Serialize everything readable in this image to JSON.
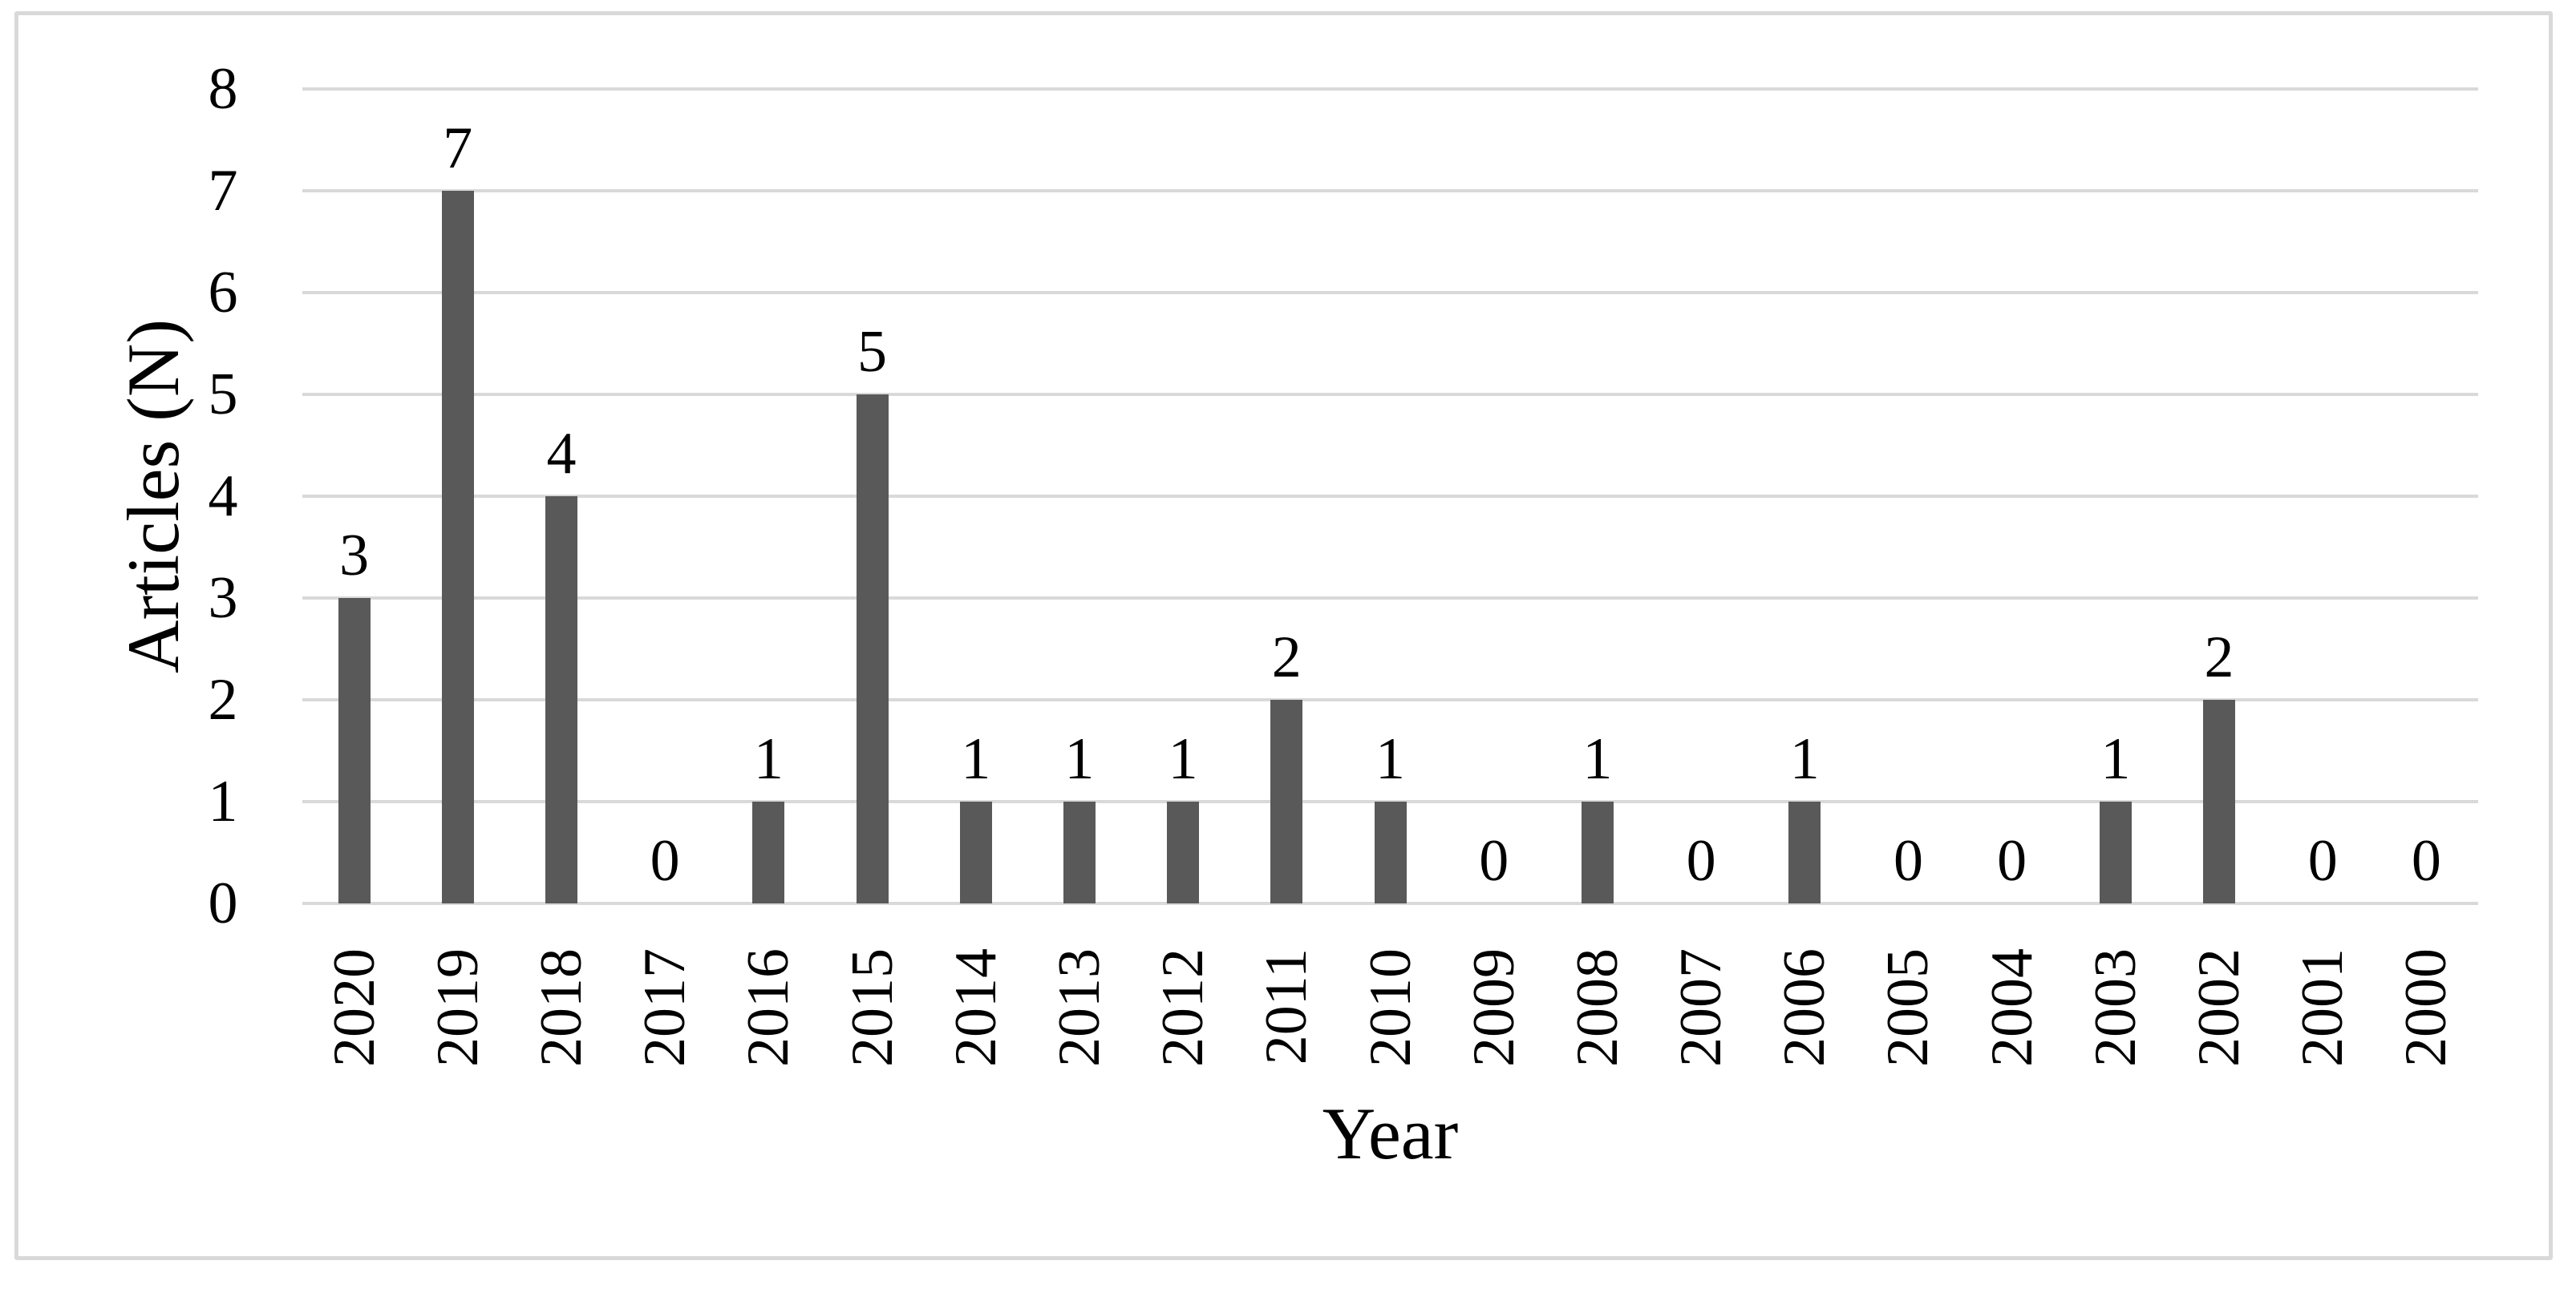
{
  "chart_data": {
    "type": "bar",
    "title": "",
    "xlabel": "Year",
    "ylabel": "Articles (N)",
    "categories": [
      "2020",
      "2019",
      "2018",
      "2017",
      "2016",
      "2015",
      "2014",
      "2013",
      "2012",
      "2011",
      "2010",
      "2009",
      "2008",
      "2007",
      "2006",
      "2005",
      "2004",
      "2003",
      "2002",
      "2001",
      "2000"
    ],
    "values": [
      3,
      7,
      4,
      0,
      1,
      5,
      1,
      1,
      1,
      2,
      1,
      0,
      1,
      0,
      1,
      0,
      0,
      1,
      2,
      0,
      0
    ],
    "ylim": [
      0,
      8
    ],
    "yticks": [
      0,
      1,
      2,
      3,
      4,
      5,
      6,
      7,
      8
    ],
    "grid": "horizontal-on",
    "legend_position": "none",
    "data_labels": "outside-end",
    "bar_color": "#595959",
    "gridline_color": "#d9d9d9",
    "frame_color": "#d9d9d9",
    "text_color": "#000000",
    "background_color": "#ffffff"
  }
}
